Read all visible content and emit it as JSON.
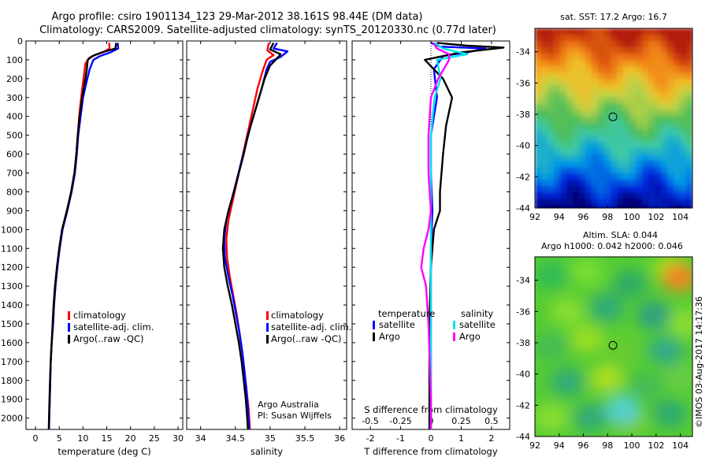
{
  "header": {
    "line1": "Argo profile: csiro 1901134_123 29-Mar-2012 38.161S 98.44E (DM data)",
    "line2": "Climatology: CARS2009. Satellite-adjusted climatology: synTS_20120330.nc (0.77d later)"
  },
  "colors": {
    "climatology": "#ff0000",
    "satellite": "#0000ff",
    "argo": "#000000",
    "sal_satellite": "#00e5ee",
    "sal_argo": "#ff00ff"
  },
  "depth_axis": {
    "ticks": [
      0,
      100,
      200,
      300,
      400,
      500,
      600,
      700,
      800,
      900,
      1000,
      1100,
      1200,
      1300,
      1400,
      1500,
      1600,
      1700,
      1800,
      1900,
      2000
    ],
    "range": [
      0,
      2060
    ]
  },
  "chart_data": [
    {
      "type": "line",
      "xlabel": "temperature (deg C)",
      "xlim": [
        -2,
        31
      ],
      "xticks": [
        0,
        5,
        10,
        15,
        20,
        25,
        30
      ],
      "legend": {
        "placement": "bottom-left",
        "entries": [
          "climatology",
          "satellite-adj. clim.",
          "Argo(..raw -QC)"
        ]
      },
      "series": [
        {
          "name": "climatology",
          "color": "#ff0000",
          "points": [
            [
              15.5,
              10
            ],
            [
              15.6,
              40
            ],
            [
              14.2,
              60
            ],
            [
              12.5,
              75
            ],
            [
              11.3,
              90
            ],
            [
              10.5,
              120
            ],
            [
              10.1,
              200
            ],
            [
              9.6,
              300
            ],
            [
              9.2,
              400
            ],
            [
              8.9,
              500
            ],
            [
              8.6,
              600
            ],
            [
              8.2,
              700
            ],
            [
              7.5,
              800
            ],
            [
              6.6,
              900
            ],
            [
              5.6,
              1000
            ],
            [
              5.0,
              1100
            ],
            [
              4.6,
              1200
            ],
            [
              4.2,
              1300
            ],
            [
              3.9,
              1400
            ],
            [
              3.7,
              1500
            ],
            [
              3.4,
              1600
            ],
            [
              3.2,
              1700
            ],
            [
              3.1,
              1800
            ],
            [
              3.0,
              1900
            ],
            [
              2.9,
              2000
            ],
            [
              2.85,
              2060
            ]
          ]
        },
        {
          "name": "satellite-adj. clim.",
          "color": "#0000ff",
          "points": [
            [
              17.3,
              10
            ],
            [
              17.4,
              40
            ],
            [
              15.8,
              60
            ],
            [
              13.6,
              80
            ],
            [
              12.2,
              100
            ],
            [
              11.4,
              150
            ],
            [
              10.9,
              200
            ],
            [
              10.0,
              300
            ],
            [
              9.5,
              400
            ],
            [
              9.0,
              500
            ],
            [
              8.7,
              600
            ],
            [
              8.3,
              700
            ],
            [
              7.6,
              800
            ],
            [
              6.7,
              900
            ],
            [
              5.7,
              1000
            ],
            [
              5.1,
              1100
            ],
            [
              4.6,
              1200
            ],
            [
              4.2,
              1300
            ],
            [
              3.9,
              1400
            ],
            [
              3.7,
              1500
            ],
            [
              3.4,
              1600
            ],
            [
              3.2,
              1700
            ],
            [
              3.1,
              1800
            ],
            [
              3.0,
              1900
            ],
            [
              2.9,
              2000
            ],
            [
              2.85,
              2060
            ]
          ]
        },
        {
          "name": "Argo(..raw -QC)",
          "color": "#000000",
          "points": [
            [
              17.0,
              10
            ],
            [
              16.8,
              40
            ],
            [
              14.0,
              60
            ],
            [
              12.0,
              80
            ],
            [
              11.0,
              100
            ],
            [
              10.8,
              150
            ],
            [
              10.5,
              200
            ],
            [
              9.8,
              300
            ],
            [
              9.3,
              400
            ],
            [
              8.9,
              500
            ],
            [
              8.6,
              600
            ],
            [
              8.2,
              700
            ],
            [
              7.5,
              800
            ],
            [
              6.6,
              900
            ],
            [
              5.6,
              1000
            ],
            [
              5.0,
              1100
            ],
            [
              4.5,
              1200
            ],
            [
              4.1,
              1300
            ],
            [
              3.8,
              1400
            ],
            [
              3.6,
              1500
            ],
            [
              3.4,
              1600
            ],
            [
              3.2,
              1700
            ],
            [
              3.05,
              1800
            ],
            [
              2.95,
              1900
            ],
            [
              2.85,
              2000
            ],
            [
              2.8,
              2060
            ]
          ]
        }
      ]
    },
    {
      "type": "line",
      "xlabel": "salinity",
      "xlim": [
        33.8,
        36.1
      ],
      "xticks": [
        34,
        34.5,
        35,
        35.5,
        36
      ],
      "xtick_labels": [
        "34",
        "34.5",
        "35",
        "35.5",
        "36"
      ],
      "legend": {
        "placement": "bottom-right",
        "entries": [
          "climatology",
          "satellite-adj. clim.",
          "Argo(..raw -QC)"
        ]
      },
      "annotation": [
        "Argo Australia",
        "PI: Susan Wijffels"
      ],
      "series": [
        {
          "name": "climatology",
          "color": "#ff0000",
          "points": [
            [
              34.98,
              10
            ],
            [
              34.96,
              50
            ],
            [
              35.05,
              75
            ],
            [
              34.95,
              100
            ],
            [
              34.9,
              150
            ],
            [
              34.82,
              250
            ],
            [
              34.76,
              350
            ],
            [
              34.7,
              450
            ],
            [
              34.64,
              550
            ],
            [
              34.58,
              650
            ],
            [
              34.52,
              750
            ],
            [
              34.46,
              850
            ],
            [
              34.4,
              950
            ],
            [
              34.37,
              1050
            ],
            [
              34.38,
              1150
            ],
            [
              34.42,
              1250
            ],
            [
              34.47,
              1350
            ],
            [
              34.52,
              1450
            ],
            [
              34.56,
              1550
            ],
            [
              34.6,
              1650
            ],
            [
              34.63,
              1750
            ],
            [
              34.66,
              1850
            ],
            [
              34.69,
              1950
            ],
            [
              34.71,
              2060
            ]
          ]
        },
        {
          "name": "satellite-adj. clim.",
          "color": "#0000ff",
          "points": [
            [
              35.1,
              10
            ],
            [
              35.05,
              40
            ],
            [
              35.25,
              55
            ],
            [
              35.15,
              85
            ],
            [
              35.0,
              110
            ],
            [
              34.95,
              150
            ],
            [
              34.88,
              250
            ],
            [
              34.8,
              350
            ],
            [
              34.72,
              450
            ],
            [
              34.65,
              550
            ],
            [
              34.58,
              650
            ],
            [
              34.51,
              750
            ],
            [
              34.44,
              850
            ],
            [
              34.37,
              950
            ],
            [
              34.34,
              1050
            ],
            [
              34.35,
              1150
            ],
            [
              34.4,
              1250
            ],
            [
              34.46,
              1350
            ],
            [
              34.51,
              1450
            ],
            [
              34.56,
              1550
            ],
            [
              34.6,
              1650
            ],
            [
              34.63,
              1750
            ],
            [
              34.66,
              1850
            ],
            [
              34.68,
              1950
            ],
            [
              34.7,
              2060
            ]
          ]
        },
        {
          "name": "Argo(..raw -QC)",
          "color": "#000000",
          "points": [
            [
              35.05,
              10
            ],
            [
              35.0,
              45
            ],
            [
              35.15,
              70
            ],
            [
              35.08,
              100
            ],
            [
              35.0,
              130
            ],
            [
              34.92,
              200
            ],
            [
              34.84,
              300
            ],
            [
              34.76,
              400
            ],
            [
              34.68,
              500
            ],
            [
              34.62,
              600
            ],
            [
              34.55,
              700
            ],
            [
              34.48,
              800
            ],
            [
              34.4,
              900
            ],
            [
              34.34,
              1000
            ],
            [
              34.32,
              1100
            ],
            [
              34.34,
              1200
            ],
            [
              34.39,
              1300
            ],
            [
              34.45,
              1400
            ],
            [
              34.5,
              1500
            ],
            [
              34.55,
              1600
            ],
            [
              34.59,
              1700
            ],
            [
              34.62,
              1800
            ],
            [
              34.65,
              1900
            ],
            [
              34.67,
              2000
            ],
            [
              34.68,
              2060
            ]
          ]
        }
      ]
    },
    {
      "type": "line",
      "xlabel": "T difference from climatology",
      "xlabel2": "S difference from climatology",
      "xlim": [
        -2.6,
        2.6
      ],
      "xticks": [
        -2,
        -1,
        0,
        1,
        2
      ],
      "xticks_top_scale": [
        -0.5,
        -0.25,
        0,
        0.25,
        0.5
      ],
      "xticks_top_labels": [
        "-0.5",
        "-0.25",
        "0",
        "0.25",
        "0.5"
      ],
      "legend_headers": [
        "temperature",
        "salinity"
      ],
      "legend": {
        "placement": "middle",
        "entries": [
          "satellite",
          "Argo",
          "satellite",
          "Argo"
        ]
      },
      "series": [
        {
          "name": "satellite",
          "group": "temperature",
          "color": "#0000ff",
          "points": [
            [
              0.0,
              10
            ],
            [
              0.3,
              30
            ],
            [
              1.8,
              40
            ],
            [
              1.2,
              60
            ],
            [
              0.4,
              80
            ],
            [
              0.1,
              150
            ],
            [
              0.2,
              300
            ],
            [
              0.0,
              500
            ],
            [
              0.0,
              700
            ],
            [
              0.05,
              900
            ],
            [
              0.0,
              1100
            ],
            [
              0.0,
              1300
            ],
            [
              0.0,
              1500
            ],
            [
              0.0,
              1700
            ],
            [
              0.0,
              1900
            ],
            [
              0.0,
              2060
            ]
          ]
        },
        {
          "name": "Argo",
          "group": "temperature",
          "color": "#000000",
          "points": [
            [
              0.2,
              10
            ],
            [
              1.2,
              25
            ],
            [
              2.4,
              35
            ],
            [
              1.0,
              60
            ],
            [
              -0.2,
              100
            ],
            [
              0.4,
              200
            ],
            [
              0.7,
              300
            ],
            [
              0.5,
              450
            ],
            [
              0.4,
              600
            ],
            [
              0.3,
              800
            ],
            [
              0.3,
              900
            ],
            [
              0.1,
              1000
            ],
            [
              0.0,
              1200
            ],
            [
              -0.05,
              1500
            ],
            [
              -0.05,
              1800
            ],
            [
              -0.05,
              2060
            ]
          ]
        },
        {
          "name": "satellite",
          "group": "salinity",
          "color": "#00e5ee",
          "points": [
            [
              0.03,
              10
            ],
            [
              0.1,
              40
            ],
            [
              0.3,
              70
            ],
            [
              0.05,
              100
            ],
            [
              0.08,
              200
            ],
            [
              0.03,
              300
            ],
            [
              0.0,
              500
            ],
            [
              0.0,
              700
            ],
            [
              0.0,
              900
            ],
            [
              0.0,
              1100
            ],
            [
              0.0,
              1300
            ],
            [
              0.0,
              1500
            ],
            [
              0.0,
              1700
            ],
            [
              0.0,
              1900
            ],
            [
              0.0,
              2060
            ]
          ]
        },
        {
          "name": "Argo",
          "group": "salinity",
          "color": "#ff00ff",
          "points": [
            [
              0.02,
              10
            ],
            [
              0.05,
              40
            ],
            [
              0.15,
              70
            ],
            [
              0.15,
              100
            ],
            [
              0.06,
              200
            ],
            [
              0.0,
              300
            ],
            [
              -0.02,
              500
            ],
            [
              -0.02,
              700
            ],
            [
              0.0,
              900
            ],
            [
              -0.02,
              1000
            ],
            [
              -0.06,
              1100
            ],
            [
              -0.08,
              1200
            ],
            [
              -0.04,
              1300
            ],
            [
              -0.02,
              1500
            ],
            [
              -0.01,
              1700
            ],
            [
              0.0,
              1900
            ],
            [
              0.0,
              2060
            ]
          ]
        }
      ]
    },
    {
      "type": "heatmap",
      "title": "sat. SST: 17.2 Argo: 16.7",
      "xlim": [
        92,
        105
      ],
      "ylim": [
        -44,
        -32.5
      ],
      "xticks": [
        92,
        94,
        96,
        98,
        100,
        102,
        104
      ],
      "yticks": [
        -34,
        -36,
        -38,
        -40,
        -42,
        -44
      ],
      "marker": {
        "lon": 98.44,
        "lat": -38.161
      }
    },
    {
      "type": "heatmap",
      "title": "Altim. SLA: 0.044",
      "subtitle": "Argo h1000: 0.042 h2000: 0.046",
      "xlim": [
        92,
        105
      ],
      "ylim": [
        -44,
        -32.5
      ],
      "xticks": [
        92,
        94,
        96,
        98,
        100,
        102,
        104
      ],
      "yticks": [
        -34,
        -36,
        -38,
        -40,
        -42,
        -44
      ],
      "marker": {
        "lon": 98.44,
        "lat": -38.161
      }
    }
  ],
  "footer": {
    "credit": "©IMOS 03-Aug-2017 14:17:36"
  }
}
